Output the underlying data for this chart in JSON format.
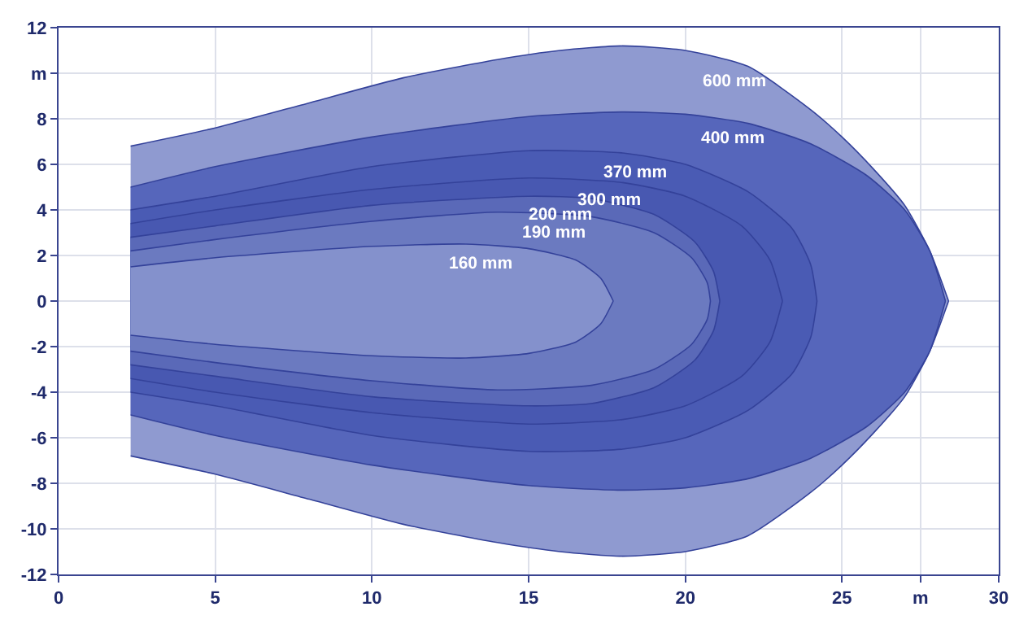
{
  "chart_data": {
    "type": "area",
    "series": [
      {
        "name": "600 mm",
        "color": "#8f9ad0",
        "x": [
          2.3,
          5,
          8,
          11,
          14,
          16,
          18,
          20,
          22,
          24,
          25,
          26,
          27,
          27.8,
          28.4
        ],
        "values": [
          6.8,
          7.6,
          8.7,
          9.8,
          10.6,
          11.0,
          11.2,
          11.0,
          10.3,
          8.4,
          7.2,
          5.8,
          4.2,
          2.2,
          0
        ]
      },
      {
        "color": "#8f9ad0",
        "x": [
          2.3,
          5,
          8,
          11,
          14,
          16,
          18,
          20,
          22,
          24,
          25,
          26,
          27,
          27.8,
          28.4
        ],
        "values": [
          -6.8,
          -7.6,
          -8.7,
          -9.8,
          -10.6,
          -11.0,
          -11.2,
          -11.0,
          -10.3,
          -8.4,
          -7.2,
          -5.8,
          -4.2,
          -2.2,
          0
        ]
      },
      {
        "name": "400 mm",
        "color": "#5666bb",
        "x": [
          2.3,
          5,
          10,
          15,
          18,
          20,
          22,
          24,
          25.8,
          27,
          27.8,
          28.3
        ],
        "values": [
          5.0,
          5.9,
          7.2,
          8.1,
          8.3,
          8.2,
          7.8,
          6.9,
          5.5,
          4.0,
          2.2,
          0
        ]
      },
      {
        "color": "#5666bb",
        "x": [
          2.3,
          5,
          10,
          15,
          18,
          20,
          22,
          24,
          25.8,
          27,
          27.8,
          28.3
        ],
        "values": [
          -5.0,
          -5.9,
          -7.2,
          -8.1,
          -8.3,
          -8.2,
          -7.8,
          -6.9,
          -5.5,
          -4.0,
          -2.2,
          0
        ]
      },
      {
        "name": "370 mm",
        "color": "#4a5bb4",
        "x": [
          2.3,
          5,
          10,
          15,
          18,
          20,
          22,
          23.4,
          24.0,
          24.2
        ],
        "values": [
          4.0,
          4.6,
          5.9,
          6.6,
          6.5,
          6.0,
          4.8,
          3.2,
          1.6,
          0
        ]
      },
      {
        "color": "#4a5bb4",
        "x": [
          2.3,
          5,
          10,
          15,
          18,
          20,
          22,
          23.4,
          24.0,
          24.2
        ],
        "values": [
          -4.0,
          -4.6,
          -5.9,
          -6.6,
          -6.5,
          -6.0,
          -4.8,
          -3.2,
          -1.6,
          0
        ]
      },
      {
        "name": "300 mm",
        "color": "#4858b1",
        "x": [
          2.3,
          5,
          10,
          15,
          18,
          20,
          21.8,
          22.7,
          23.1
        ],
        "values": [
          3.4,
          4.0,
          4.9,
          5.4,
          5.2,
          4.6,
          3.3,
          1.8,
          0
        ]
      },
      {
        "color": "#4858b1",
        "x": [
          2.3,
          5,
          10,
          15,
          18,
          20,
          21.8,
          22.7,
          23.1
        ],
        "values": [
          -3.4,
          -4.0,
          -4.9,
          -5.4,
          -5.2,
          -4.6,
          -3.3,
          -1.8,
          0
        ]
      },
      {
        "name": "200 mm",
        "color": "#5a69b8",
        "x": [
          2.3,
          5,
          10,
          15,
          17,
          19,
          20.3,
          20.9,
          21.1
        ],
        "values": [
          2.8,
          3.3,
          4.2,
          4.6,
          4.5,
          3.8,
          2.6,
          1.3,
          0
        ]
      },
      {
        "color": "#5a69b8",
        "x": [
          2.3,
          5,
          10,
          15,
          17,
          19,
          20.3,
          20.9,
          21.1
        ],
        "values": [
          -2.8,
          -3.3,
          -4.2,
          -4.6,
          -4.5,
          -3.8,
          -2.6,
          -1.3,
          0
        ]
      },
      {
        "name": "190 mm",
        "color": "#6b7ac0",
        "x": [
          2.3,
          5,
          10,
          14,
          17,
          19,
          20.2,
          20.7,
          20.8
        ],
        "values": [
          2.2,
          2.7,
          3.5,
          3.9,
          3.7,
          3.0,
          1.9,
          0.8,
          0
        ]
      },
      {
        "color": "#6b7ac0",
        "x": [
          2.3,
          5,
          10,
          14,
          17,
          19,
          20.2,
          20.7,
          20.8
        ],
        "values": [
          -2.2,
          -2.7,
          -3.5,
          -3.9,
          -3.7,
          -3.0,
          -1.9,
          -0.8,
          0
        ]
      },
      {
        "name": "160 mm",
        "color": "#8491cc",
        "x": [
          2.3,
          5,
          10,
          13,
          15,
          16.5,
          17.3,
          17.7
        ],
        "values": [
          1.5,
          1.9,
          2.4,
          2.5,
          2.3,
          1.8,
          1.0,
          0
        ]
      },
      {
        "color": "#8491cc",
        "x": [
          2.3,
          5,
          10,
          13,
          15,
          16.5,
          17.3,
          17.7
        ],
        "values": [
          -1.5,
          -1.9,
          -2.4,
          -2.5,
          -2.3,
          -1.8,
          -1.0,
          0
        ]
      }
    ],
    "xlim": [
      0,
      30
    ],
    "xticks": [
      0,
      5,
      10,
      15,
      20,
      25,
      {
        "value": 27.5,
        "label": "m"
      },
      30
    ],
    "ylim": [
      -12,
      12
    ],
    "yticks": [
      -12,
      -10,
      -8,
      -6,
      -4,
      -2,
      0,
      2,
      4,
      6,
      8,
      {
        "value": 10,
        "label": "m"
      },
      12
    ],
    "grid": true
  }
}
